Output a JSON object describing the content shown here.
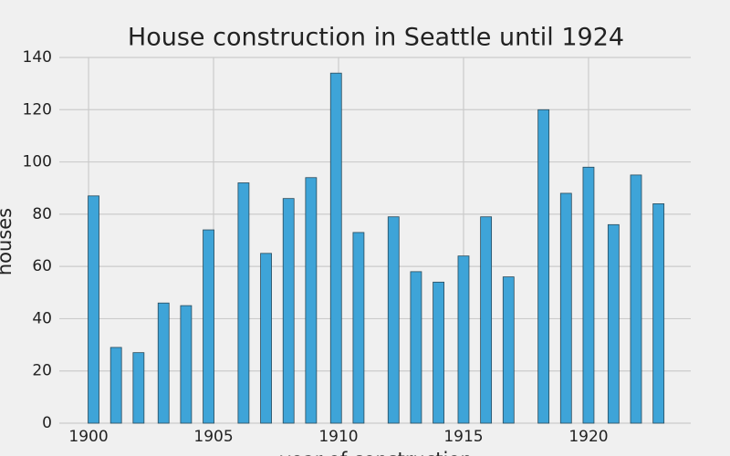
{
  "chart_data": {
    "type": "bar",
    "title": "House construction in Seattle until 1924",
    "x_label": "year of construction",
    "y_label": "houses",
    "x": [
      1900.2,
      1901.1,
      1902.0,
      1903.0,
      1903.9,
      1904.8,
      1906.2,
      1907.1,
      1908.0,
      1908.9,
      1909.9,
      1910.8,
      1912.2,
      1913.1,
      1914.0,
      1915.0,
      1915.9,
      1916.8,
      1918.2,
      1919.1,
      1920.0,
      1921.0,
      1921.9,
      1922.8
    ],
    "values": [
      87,
      29,
      27,
      46,
      45,
      74,
      92,
      65,
      86,
      94,
      134,
      73,
      79,
      58,
      54,
      64,
      79,
      56,
      120,
      88,
      98,
      76,
      95,
      84
    ],
    "color": "#3ea4d8",
    "xlim": [
      1898.83,
      1924.09
    ],
    "xticks": [
      1900,
      1905,
      1910,
      1915,
      1920
    ],
    "ylim": [
      0,
      140
    ],
    "yticks": [
      0,
      20,
      40,
      60,
      80,
      100,
      120,
      140
    ],
    "grid": true
  }
}
